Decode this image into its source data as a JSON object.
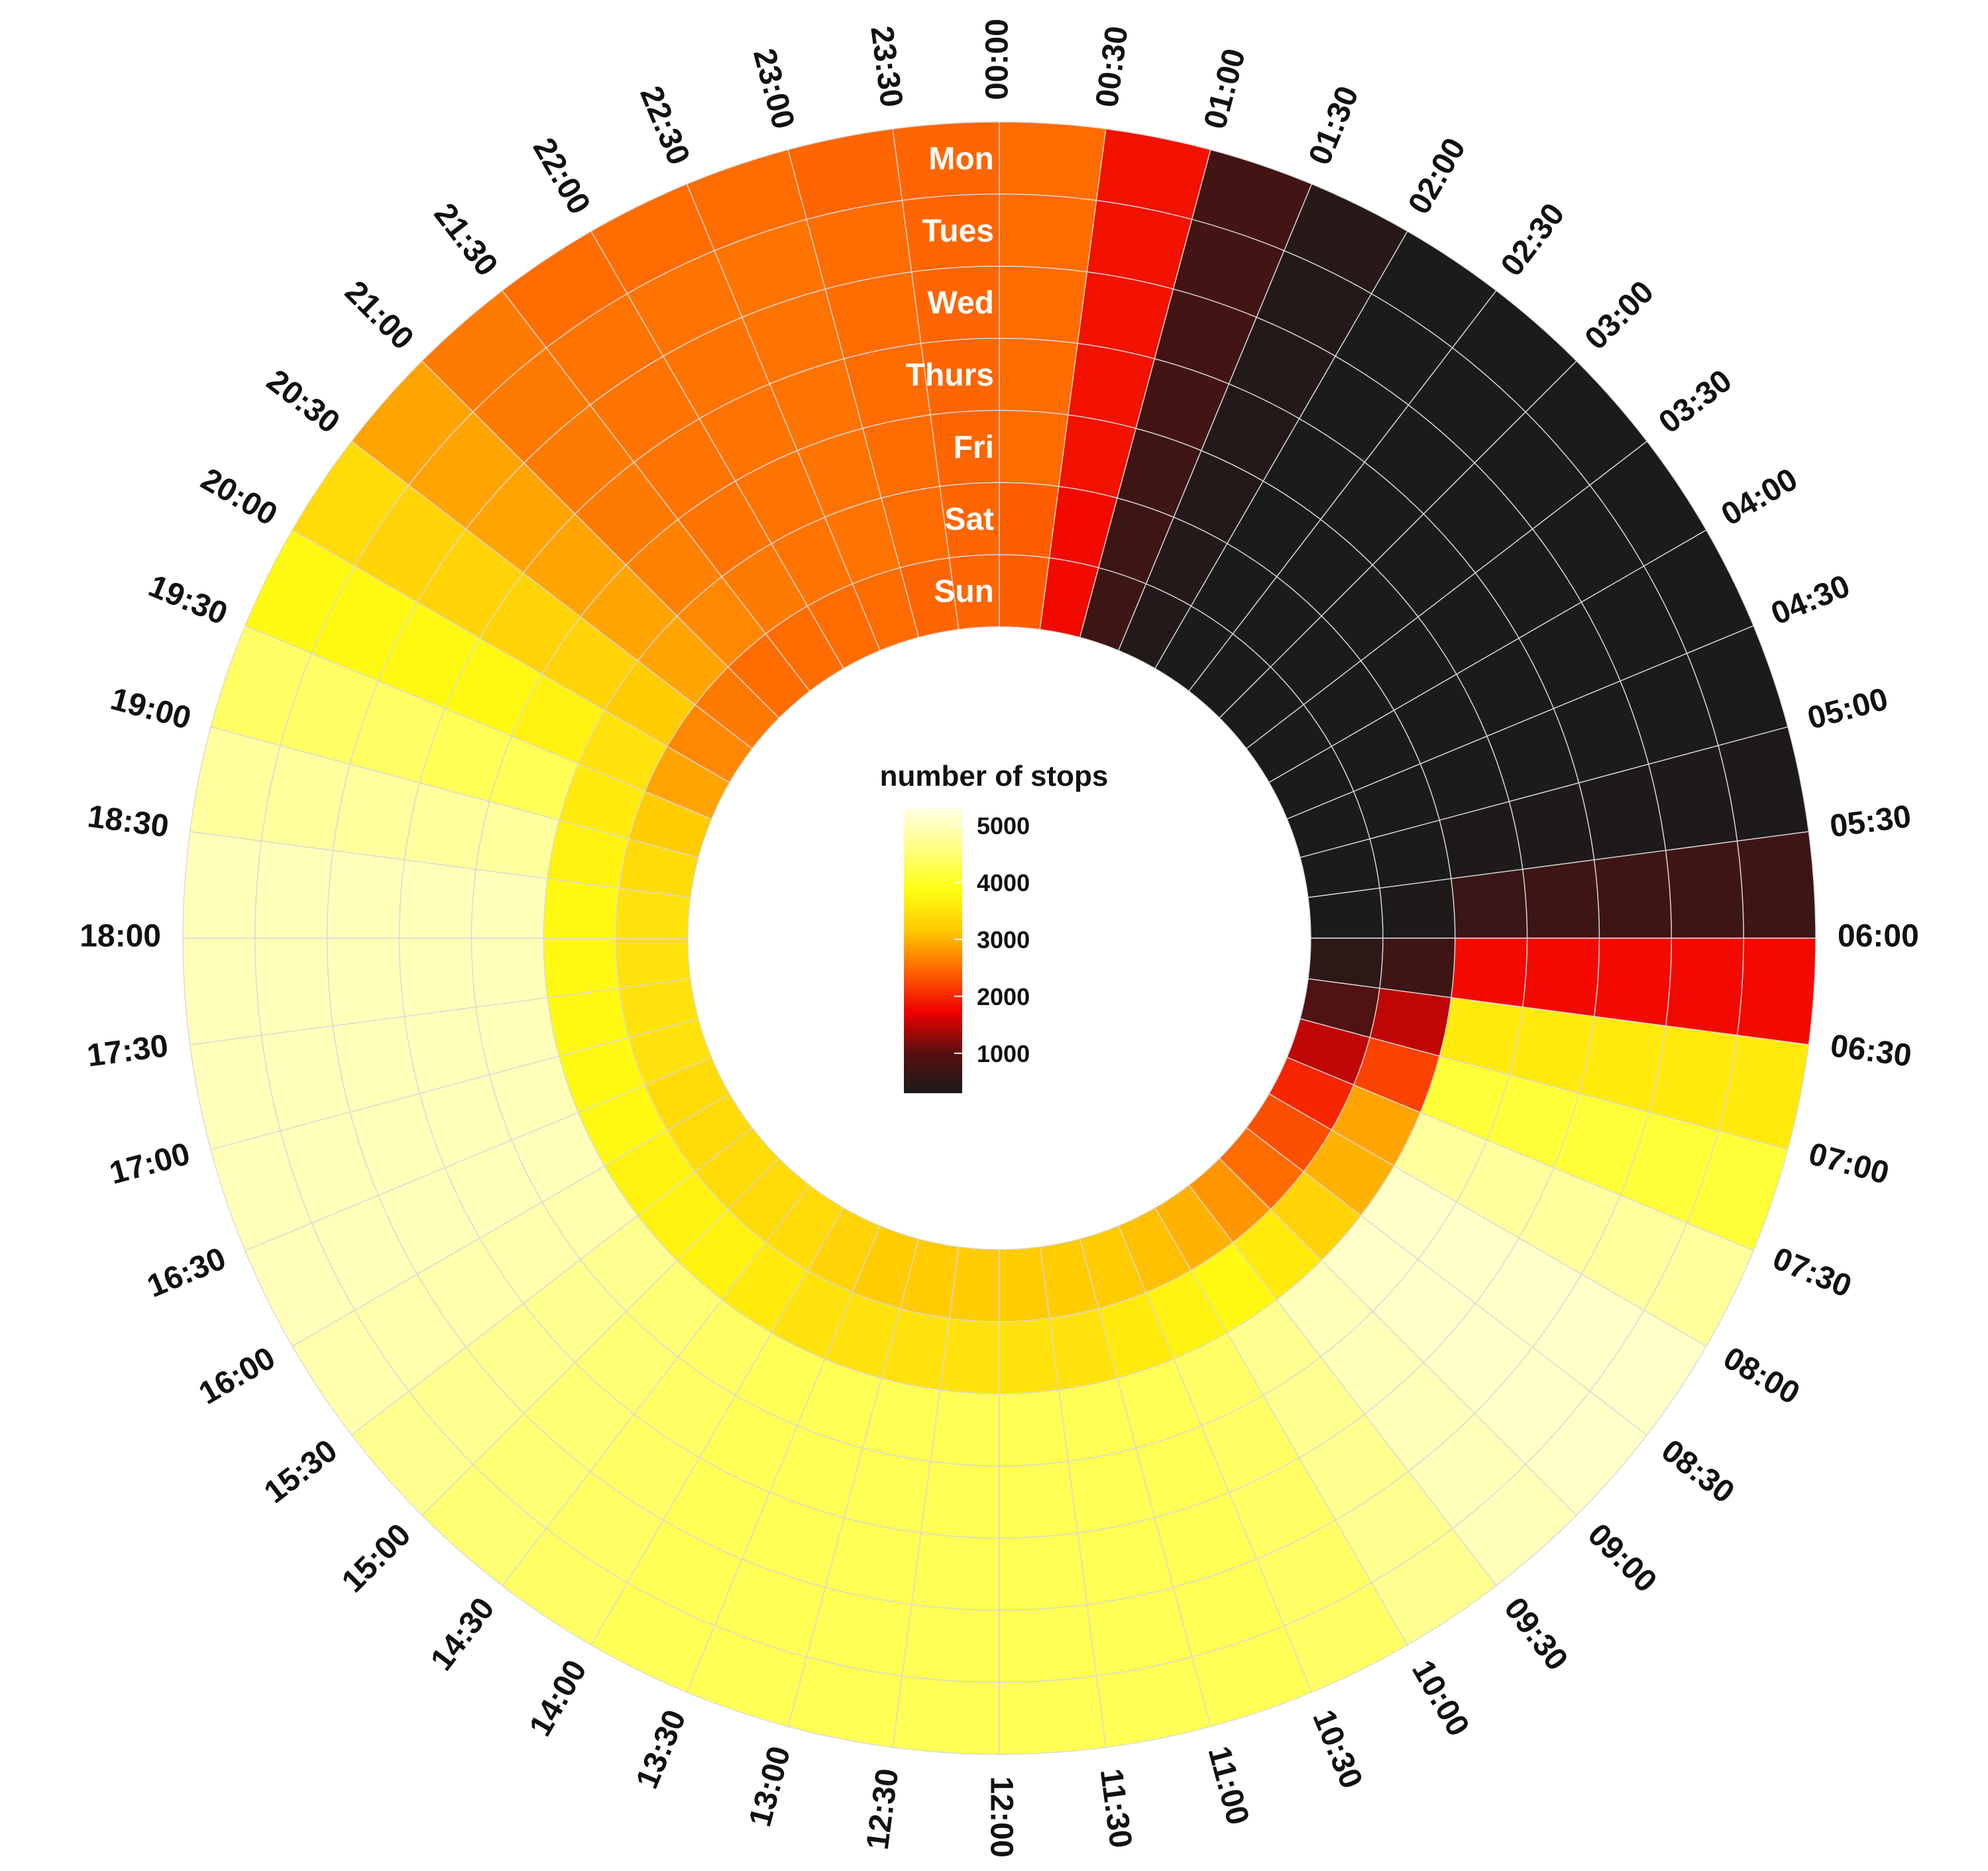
{
  "chart_data": {
    "type": "heatmap",
    "layout": "circular",
    "title": "",
    "days": [
      "Mon",
      "Tues",
      "Wed",
      "Thurs",
      "Fri",
      "Sat",
      "Sun"
    ],
    "times": [
      "00:00",
      "00:30",
      "01:00",
      "01:30",
      "02:00",
      "02:30",
      "03:00",
      "03:30",
      "04:00",
      "04:30",
      "05:00",
      "05:30",
      "06:00",
      "06:30",
      "07:00",
      "07:30",
      "08:00",
      "08:30",
      "09:00",
      "09:30",
      "10:00",
      "10:30",
      "11:00",
      "11:30",
      "12:00",
      "12:30",
      "13:00",
      "13:30",
      "14:00",
      "14:30",
      "15:00",
      "15:30",
      "16:00",
      "16:30",
      "17:00",
      "17:30",
      "18:00",
      "18:30",
      "19:00",
      "19:30",
      "20:00",
      "20:30",
      "21:00",
      "21:30",
      "22:00",
      "22:30",
      "23:00",
      "23:30"
    ],
    "values": [
      [
        2500,
        1850,
        750,
        450,
        300,
        300,
        300,
        300,
        300,
        300,
        350,
        700,
        1800,
        3600,
        4100,
        4800,
        5100,
        5100,
        5000,
        4700,
        4400,
        4300,
        4300,
        4300,
        4300,
        4300,
        4300,
        4300,
        4400,
        4500,
        4700,
        4900,
        5000,
        5000,
        5000,
        5000,
        5000,
        4800,
        4400,
        3800,
        3400,
        2900,
        2600,
        2500,
        2500,
        2500,
        2450,
        2450
      ],
      [
        2500,
        1850,
        750,
        400,
        300,
        300,
        300,
        300,
        300,
        300,
        350,
        700,
        1800,
        3600,
        4100,
        4800,
        5100,
        5100,
        5000,
        4700,
        4400,
        4300,
        4300,
        4300,
        4300,
        4300,
        4300,
        4300,
        4400,
        4500,
        4700,
        4900,
        5000,
        5000,
        5000,
        5000,
        5000,
        4800,
        4400,
        3800,
        3300,
        2900,
        2600,
        2550,
        2550,
        2550,
        2500,
        2450
      ],
      [
        2500,
        1850,
        750,
        400,
        300,
        300,
        300,
        300,
        300,
        300,
        350,
        700,
        1800,
        3600,
        4100,
        4800,
        5100,
        5100,
        5000,
        4700,
        4400,
        4300,
        4300,
        4300,
        4300,
        4300,
        4300,
        4300,
        4400,
        4500,
        4700,
        4900,
        5000,
        5000,
        5000,
        5000,
        5000,
        4800,
        4400,
        3800,
        3300,
        2900,
        2600,
        2550,
        2550,
        2550,
        2500,
        2450
      ],
      [
        2500,
        1850,
        750,
        400,
        300,
        300,
        300,
        300,
        300,
        300,
        350,
        700,
        1800,
        3600,
        4100,
        4800,
        5100,
        5100,
        5000,
        4700,
        4400,
        4300,
        4300,
        4300,
        4300,
        4300,
        4300,
        4300,
        4400,
        4500,
        4700,
        4900,
        5000,
        5000,
        5000,
        5000,
        5000,
        4800,
        4300,
        3800,
        3300,
        2900,
        2600,
        2550,
        2550,
        2550,
        2500,
        2450
      ],
      [
        2500,
        1850,
        700,
        400,
        300,
        300,
        300,
        300,
        300,
        300,
        350,
        650,
        1800,
        3600,
        4100,
        4800,
        5100,
        5100,
        5000,
        4700,
        4400,
        4300,
        4300,
        4300,
        4300,
        4300,
        4300,
        4300,
        4400,
        4500,
        4700,
        4900,
        5000,
        5000,
        5000,
        5000,
        5000,
        4800,
        4300,
        3700,
        3300,
        2900,
        2650,
        2550,
        2550,
        2550,
        2500,
        2450
      ],
      [
        2400,
        1800,
        700,
        400,
        300,
        300,
        300,
        300,
        300,
        300,
        300,
        350,
        700,
        1500,
        2200,
        2900,
        3000,
        3300,
        3600,
        3800,
        3700,
        3600,
        3500,
        3500,
        3500,
        3500,
        3500,
        3500,
        3600,
        3700,
        3700,
        3700,
        3800,
        3800,
        3800,
        3800,
        3800,
        3700,
        3600,
        3500,
        3200,
        2900,
        2700,
        2600,
        2550,
        2550,
        2500,
        2450
      ],
      [
        2400,
        1800,
        700,
        400,
        300,
        300,
        300,
        300,
        300,
        300,
        300,
        300,
        500,
        900,
        1500,
        2000,
        2300,
        2500,
        2800,
        3000,
        3100,
        3200,
        3200,
        3200,
        3200,
        3200,
        3200,
        3300,
        3400,
        3400,
        3400,
        3400,
        3400,
        3500,
        3500,
        3500,
        3500,
        3400,
        3200,
        2900,
        2700,
        2600,
        2500,
        2500,
        2500,
        2500,
        2450,
        2450
      ]
    ],
    "legend": {
      "title": "number of stops",
      "ticks": [
        1000,
        2000,
        3000,
        4000,
        5000
      ],
      "min": 300,
      "max": 5300
    },
    "colors": {
      "scale": [
        "#1b1b1b",
        "#5a1010",
        "#f00000",
        "#ff6400",
        "#ffc800",
        "#ffff14",
        "#ffff80",
        "#ffffe4"
      ],
      "grid": "#d9d9d9",
      "day_label": "#ffffff"
    }
  }
}
